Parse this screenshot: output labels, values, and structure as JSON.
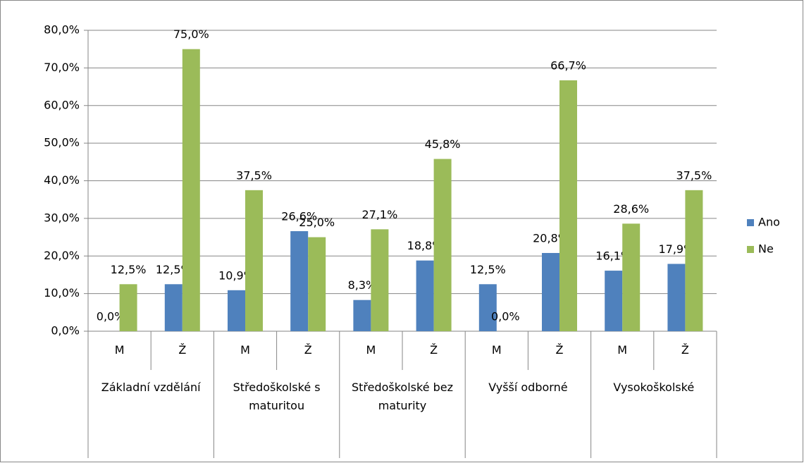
{
  "chart_data": {
    "type": "bar",
    "groups": [
      "Základní vzdělání",
      "Středoškolské s maturitou",
      "Středoškolské bez maturity",
      "Vyšší odborné",
      "Vysokoškolské"
    ],
    "categories": [
      "M",
      "Ž",
      "M",
      "Ž",
      "M",
      "Ž",
      "M",
      "Ž",
      "M",
      "Ž"
    ],
    "series": [
      {
        "name": "Ano",
        "color": "#4f81bd",
        "values": [
          0,
          12.5,
          10.9,
          26.6,
          8.3,
          18.8,
          12.5,
          20.8,
          16.1,
          17.9
        ],
        "value_labels": [
          "0,0%",
          "12,5%",
          "10,9%",
          "26,6%",
          "8,3%",
          "18,8%",
          "12,5%",
          "20,8%",
          "16,1%",
          "17,9%"
        ]
      },
      {
        "name": "Ne",
        "color": "#9bbb59",
        "values": [
          12.5,
          75,
          37.5,
          25,
          27.1,
          45.8,
          0,
          66.7,
          28.6,
          37.5
        ],
        "value_labels": [
          "12,5%",
          "75,0%",
          "37,5%",
          "25,0%",
          "27,1%",
          "45,8%",
          "0,0%",
          "66,7%",
          "28,6%",
          "37,5%"
        ]
      }
    ],
    "ylim": [
      0,
      80
    ],
    "yticks": [
      {
        "value": 0,
        "label": "0,0%"
      },
      {
        "value": 10,
        "label": "10,0%"
      },
      {
        "value": 20,
        "label": "20,0%"
      },
      {
        "value": 30,
        "label": "30,0%"
      },
      {
        "value": 40,
        "label": "40,0%"
      },
      {
        "value": 50,
        "label": "50,0%"
      },
      {
        "value": 60,
        "label": "60,0%"
      },
      {
        "value": 70,
        "label": "70,0%"
      },
      {
        "value": 80,
        "label": "80,0%"
      }
    ],
    "grid": true,
    "legend": "right"
  }
}
